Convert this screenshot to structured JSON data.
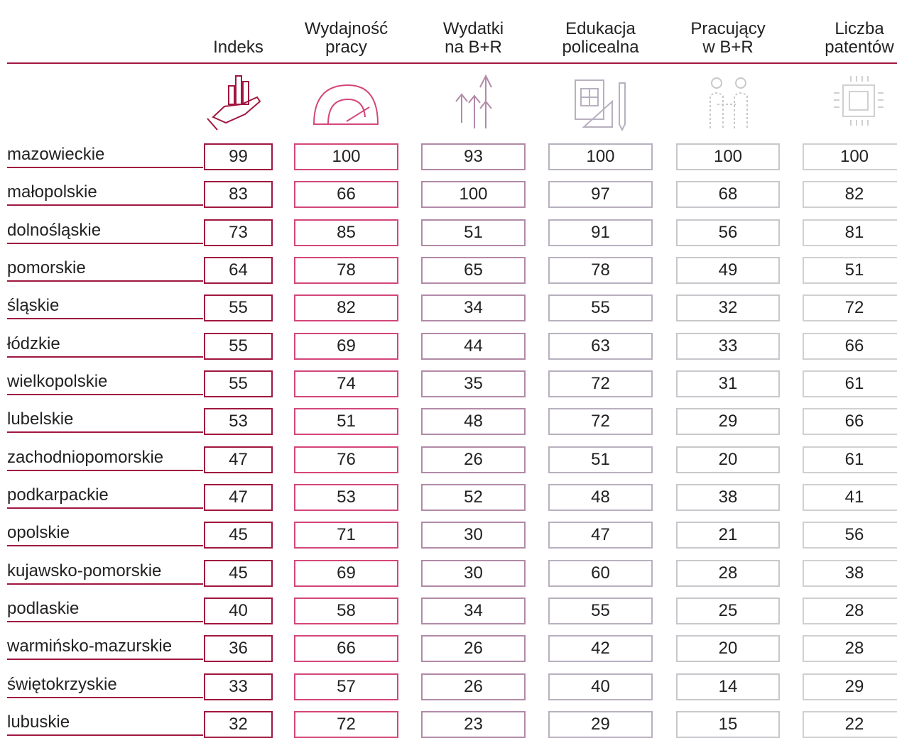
{
  "header": {
    "columns": [
      [
        "Indeks"
      ],
      [
        "Wydajność",
        "pracy"
      ],
      [
        "Wydatki",
        "na B+R"
      ],
      [
        "Edukacja",
        "policealna"
      ],
      [
        "Pracujący",
        "w B+R"
      ],
      [
        "Liczba",
        "patentów"
      ]
    ]
  },
  "table": {
    "rows": [
      [
        "mazowieckie",
        "99",
        "100",
        "93",
        "100",
        "100",
        "100"
      ],
      [
        "małopolskie",
        "83",
        "66",
        "100",
        "97",
        "68",
        "82"
      ],
      [
        "dolnośląskie",
        "73",
        "85",
        "51",
        "91",
        "56",
        "81"
      ],
      [
        "pomorskie",
        "64",
        "78",
        "65",
        "78",
        "49",
        "51"
      ],
      [
        "śląskie",
        "55",
        "82",
        "34",
        "55",
        "32",
        "72"
      ],
      [
        "łódzkie",
        "55",
        "69",
        "44",
        "63",
        "33",
        "66"
      ],
      [
        "wielkopolskie",
        "55",
        "74",
        "35",
        "72",
        "31",
        "61"
      ],
      [
        "lubelskie",
        "53",
        "51",
        "48",
        "72",
        "29",
        "66"
      ],
      [
        "zachodniopomorskie",
        "47",
        "76",
        "26",
        "51",
        "20",
        "61"
      ],
      [
        "podkarpackie",
        "47",
        "53",
        "52",
        "48",
        "38",
        "41"
      ],
      [
        "opolskie",
        "45",
        "71",
        "30",
        "47",
        "21",
        "56"
      ],
      [
        "kujawsko-pomorskie",
        "45",
        "69",
        "30",
        "60",
        "28",
        "38"
      ],
      [
        "podlaskie",
        "40",
        "58",
        "34",
        "55",
        "25",
        "28"
      ],
      [
        "warmińsko-mazurskie",
        "36",
        "66",
        "26",
        "42",
        "20",
        "28"
      ],
      [
        "świętokrzyskie",
        "33",
        "57",
        "26",
        "40",
        "14",
        "29"
      ],
      [
        "lubuskie",
        "32",
        "72",
        "23",
        "29",
        "15",
        "22"
      ]
    ]
  }
}
